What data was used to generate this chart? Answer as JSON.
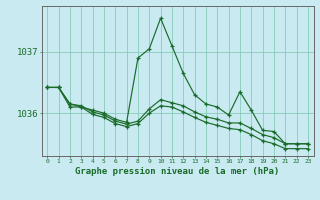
{
  "title": "Graphe pression niveau de la mer (hPa)",
  "background_color": "#c8eaf0",
  "grid_color": "#88ccbb",
  "line_color": "#1a6b2a",
  "y_ticks": [
    1036,
    1037
  ],
  "ylim": [
    1035.3,
    1037.75
  ],
  "xlim": [
    -0.5,
    23.5
  ],
  "main_line": [
    1036.42,
    1036.42,
    1036.15,
    1036.1,
    1036.05,
    1036.0,
    1035.9,
    1035.85,
    1036.9,
    1037.05,
    1037.55,
    1037.1,
    1036.65,
    1036.3,
    1036.15,
    1036.1,
    1035.97,
    1036.35,
    1036.05,
    1035.72,
    1035.7,
    1035.5,
    1035.5,
    1035.5
  ],
  "line2": [
    1036.42,
    1036.42,
    1036.15,
    1036.12,
    1036.02,
    1035.97,
    1035.87,
    1035.82,
    1035.87,
    1036.07,
    1036.22,
    1036.17,
    1036.12,
    1036.02,
    1035.94,
    1035.9,
    1035.84,
    1035.84,
    1035.75,
    1035.65,
    1035.6,
    1035.5,
    1035.5,
    1035.5
  ],
  "line3": [
    1036.42,
    1036.42,
    1036.1,
    1036.1,
    1035.98,
    1035.93,
    1035.83,
    1035.78,
    1035.83,
    1036.0,
    1036.12,
    1036.1,
    1036.02,
    1035.93,
    1035.85,
    1035.8,
    1035.75,
    1035.73,
    1035.65,
    1035.55,
    1035.5,
    1035.42,
    1035.42,
    1035.42
  ]
}
